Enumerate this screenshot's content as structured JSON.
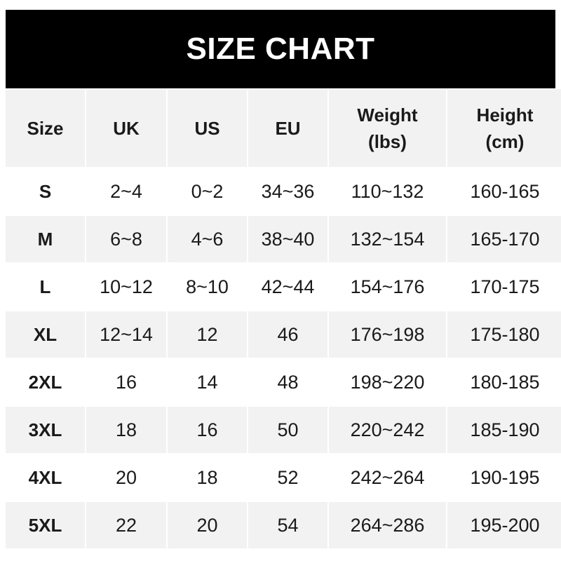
{
  "title": "SIZE CHART",
  "headers": [
    "Size",
    "UK",
    "US",
    "EU",
    "Weight\n(lbs)",
    "Height\n(cm)"
  ],
  "colors": {
    "title_bg": "#000000",
    "title_text": "#ffffff",
    "alt_row": "#f2f2f2"
  },
  "rows": [
    [
      "S",
      "2~4",
      "0~2",
      "34~36",
      "110~132",
      "160-165"
    ],
    [
      "M",
      "6~8",
      "4~6",
      "38~40",
      "132~154",
      "165-170"
    ],
    [
      "L",
      "10~12",
      "8~10",
      "42~44",
      "154~176",
      "170-175"
    ],
    [
      "XL",
      "12~14",
      "12",
      "46",
      "176~198",
      "175-180"
    ],
    [
      "2XL",
      "16",
      "14",
      "48",
      "198~220",
      "180-185"
    ],
    [
      "3XL",
      "18",
      "16",
      "50",
      "220~242",
      "185-190"
    ],
    [
      "4XL",
      "20",
      "18",
      "52",
      "242~264",
      "190-195"
    ],
    [
      "5XL",
      "22",
      "20",
      "54",
      "264~286",
      "195-200"
    ]
  ]
}
